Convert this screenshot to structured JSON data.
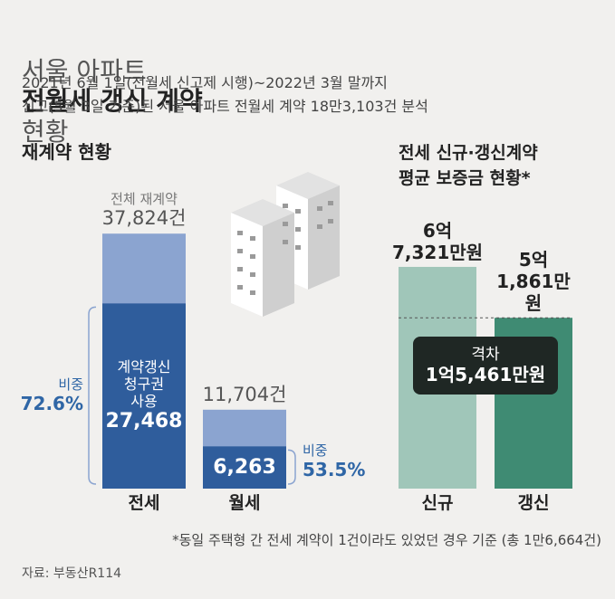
{
  "header": {
    "title_light_1": "서울 아파트",
    "title_bold": "전월세 갱신 계약",
    "title_light_2": "현황",
    "subtitle_lines": [
      "2021년 6월 1일(전월세 신고제 시행)~2022년 3월 말까지",
      "신고(5월 3일 기준)된 서울 아파트 전월세 계약 18만3,103건 분석"
    ]
  },
  "chart_data": [
    {
      "type": "bar",
      "title": "재계약 현황",
      "categories": [
        "전세",
        "월세"
      ],
      "series": [
        {
          "name": "전체 재계약",
          "color": "#8ba4d0",
          "values": [
            37824,
            11704
          ],
          "value_labels": [
            "37,824건",
            "11,704건"
          ]
        },
        {
          "name": "계약갱신\n청구권\n사용",
          "color": "#2f5d9c",
          "values": [
            27468,
            6263
          ],
          "value_labels": [
            "27,468",
            "6,263"
          ]
        }
      ],
      "share": {
        "label": "비중",
        "values": [
          72.6,
          53.5
        ],
        "value_labels": [
          "72.6%",
          "53.5%"
        ]
      }
    },
    {
      "type": "bar",
      "title": [
        "전세 신규·갱신계약",
        "평균 보증금 현황*"
      ],
      "categories": [
        "신규",
        "갱신"
      ],
      "values": [
        67321,
        51861
      ],
      "value_labels": [
        "6억\n7,321만원",
        "5억\n1,861만원"
      ],
      "colors": [
        "#a0c6b9",
        "#3f8b73"
      ],
      "annotation": {
        "label": "격차",
        "value": 15461,
        "value_label": "1억5,461만원"
      }
    }
  ],
  "footer": {
    "footnote": "*동일 주택형 간 전세 계약이 1건이라도 있었던 경우 기준 (총 1만6,664건)",
    "source": "자료: 부동산R114"
  }
}
